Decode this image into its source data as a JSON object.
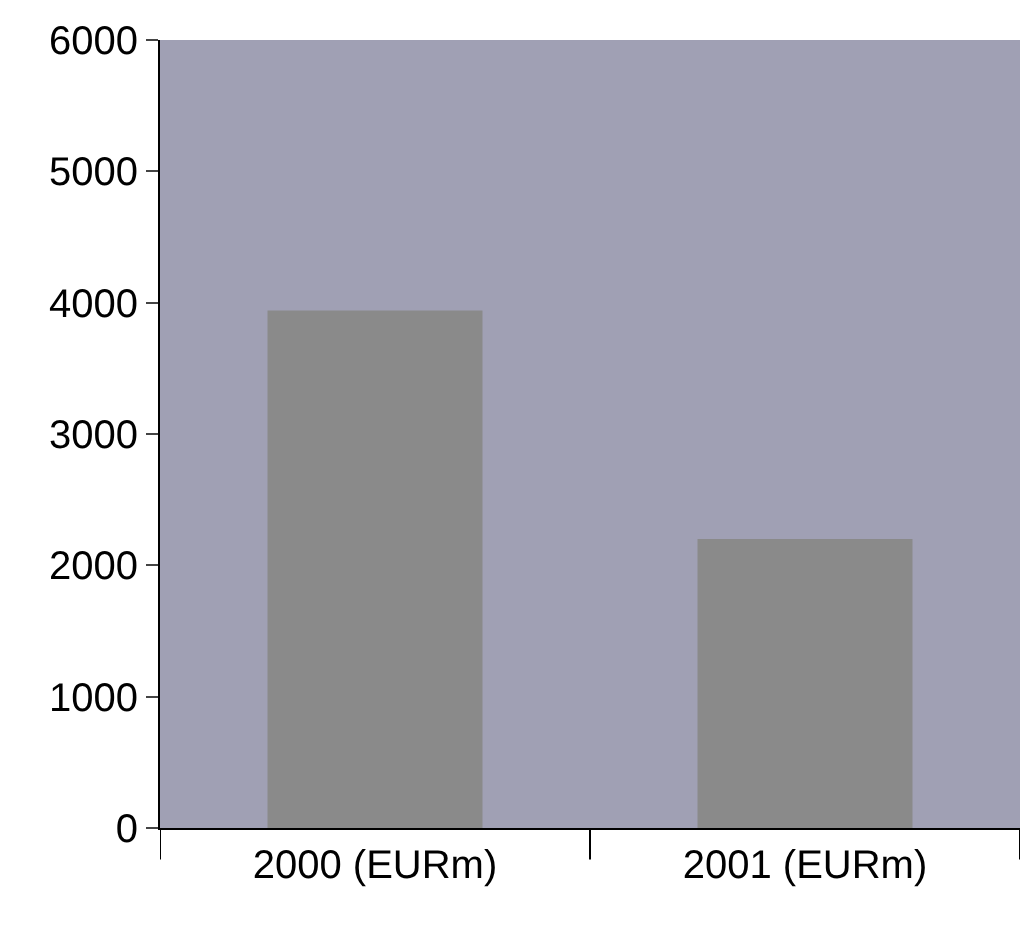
{
  "chart_data": {
    "type": "bar",
    "categories": [
      "2000 (EURm)",
      "2001 (EURm)"
    ],
    "values": [
      3940,
      2200
    ],
    "color": "#8a8a8a",
    "ylim": [
      0,
      6000
    ],
    "yticks": [
      0,
      1000,
      2000,
      3000,
      4000,
      5000,
      6000
    ],
    "grid": false,
    "legend": false
  }
}
